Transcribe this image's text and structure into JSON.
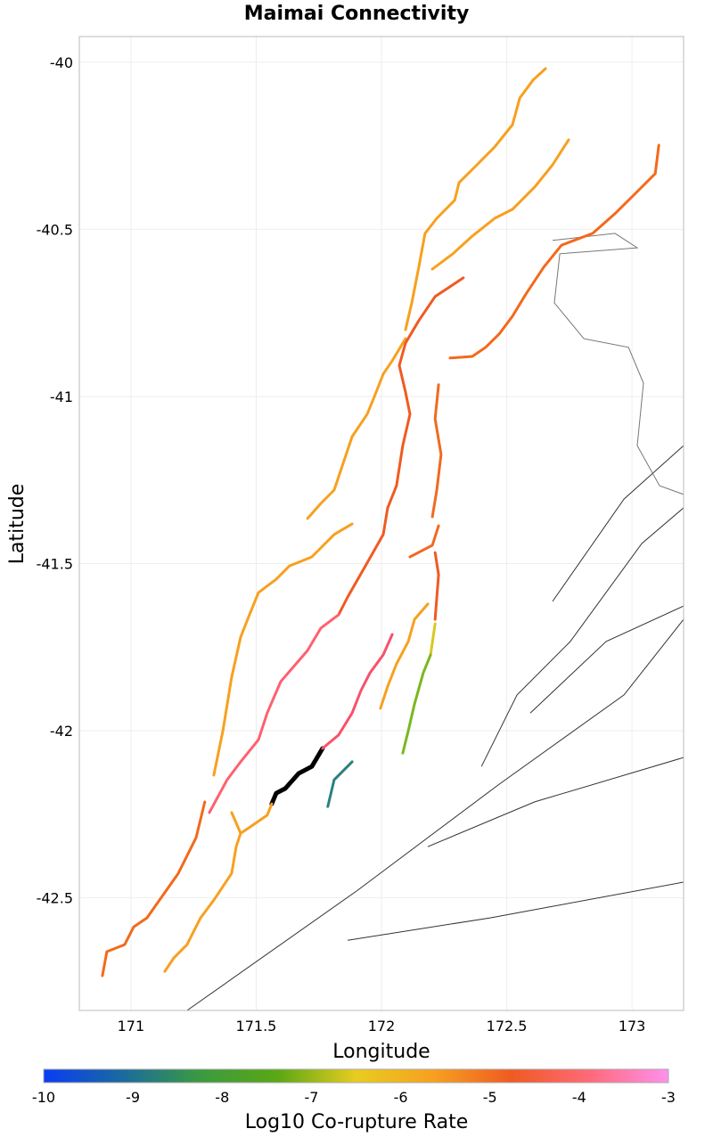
{
  "chart_data": {
    "type": "map",
    "title": "Maimai Connectivity",
    "xlabel": "Longitude",
    "ylabel": "Latitude",
    "xlim": [
      170.794,
      173.206
    ],
    "ylim": [
      -42.837,
      -39.923
    ],
    "xticks": [
      171,
      171.5,
      172,
      172.5,
      173
    ],
    "xtick_labels": [
      "171",
      "171.5",
      "172",
      "172.5",
      "173"
    ],
    "yticks": [
      -40,
      -40.5,
      -41,
      -41.5,
      -42,
      -42.5
    ],
    "ytick_labels": [
      "-40",
      "-40.5",
      "-41",
      "-41.5",
      "-42",
      "-42.5"
    ],
    "grid": true,
    "colorbar": {
      "label": "Log10 Co-rupture Rate",
      "range": [
        -10,
        -3
      ],
      "ticks": [
        "-10",
        "-9",
        "-8",
        "-7",
        "-6",
        "-5",
        "-4",
        "-3"
      ],
      "stops": [
        "#0a3cf5",
        "#1a6aa0",
        "#3a9a40",
        "#5aa814",
        "#e8cc20",
        "#f7a020",
        "#f05a22",
        "#ff6a7a",
        "#ff90ee"
      ]
    },
    "fault_traces": [
      {
        "name": "trace-1",
        "color": "#f7a020",
        "pts": [
          [
            172.655,
            -40.019
          ],
          [
            172.605,
            -40.053
          ],
          [
            172.552,
            -40.107
          ],
          [
            172.523,
            -40.187
          ],
          [
            172.452,
            -40.253
          ],
          [
            172.381,
            -40.307
          ],
          [
            172.31,
            -40.36
          ],
          [
            172.292,
            -40.413
          ],
          [
            172.221,
            -40.467
          ],
          [
            172.174,
            -40.512
          ],
          [
            172.149,
            -40.613
          ],
          [
            172.121,
            -40.72
          ],
          [
            172.096,
            -40.8
          ]
        ]
      },
      {
        "name": "trace-2",
        "color": "#f7a020",
        "pts": [
          [
            172.096,
            -40.827
          ],
          [
            172.043,
            -40.893
          ],
          [
            172.007,
            -40.933
          ],
          [
            171.972,
            -41.0
          ],
          [
            171.943,
            -41.053
          ],
          [
            171.883,
            -41.12
          ],
          [
            171.847,
            -41.2
          ],
          [
            171.811,
            -41.28
          ],
          [
            171.758,
            -41.32
          ],
          [
            171.705,
            -41.365
          ]
        ]
      },
      {
        "name": "trace-3",
        "color": "#f7a020",
        "pts": [
          [
            171.883,
            -41.381
          ],
          [
            171.811,
            -41.413
          ],
          [
            171.722,
            -41.48
          ],
          [
            171.633,
            -41.507
          ],
          [
            171.58,
            -41.547
          ],
          [
            171.509,
            -41.587
          ],
          [
            171.473,
            -41.653
          ],
          [
            171.438,
            -41.72
          ],
          [
            171.402,
            -41.84
          ],
          [
            171.367,
            -42.0
          ],
          [
            171.331,
            -42.133
          ]
        ]
      },
      {
        "name": "trace-4",
        "color": "#f26a1b",
        "pts": [
          [
            171.295,
            -42.213
          ],
          [
            171.26,
            -42.32
          ],
          [
            171.189,
            -42.427
          ],
          [
            171.064,
            -42.56
          ],
          [
            171.011,
            -42.587
          ],
          [
            170.975,
            -42.64
          ],
          [
            170.904,
            -42.661
          ],
          [
            170.886,
            -42.733
          ]
        ]
      },
      {
        "name": "trace-5",
        "color": "#f26a1b",
        "pts": [
          [
            173.107,
            -40.248
          ],
          [
            173.093,
            -40.333
          ],
          [
            173.021,
            -40.387
          ],
          [
            172.932,
            -40.453
          ],
          [
            172.843,
            -40.512
          ],
          [
            172.719,
            -40.547
          ],
          [
            172.648,
            -40.613
          ],
          [
            172.577,
            -40.693
          ],
          [
            172.523,
            -40.76
          ],
          [
            172.47,
            -40.813
          ],
          [
            172.416,
            -40.853
          ],
          [
            172.363,
            -40.88
          ],
          [
            172.274,
            -40.885
          ]
        ]
      },
      {
        "name": "trace-6",
        "color": "#f7a020",
        "pts": [
          [
            172.747,
            -40.232
          ],
          [
            172.683,
            -40.307
          ],
          [
            172.612,
            -40.373
          ],
          [
            172.523,
            -40.44
          ],
          [
            172.452,
            -40.467
          ],
          [
            172.363,
            -40.52
          ],
          [
            172.285,
            -40.573
          ],
          [
            172.203,
            -40.619
          ]
        ]
      },
      {
        "name": "trace-7",
        "color": "#f05a22",
        "pts": [
          [
            172.327,
            -40.645
          ],
          [
            172.214,
            -40.701
          ],
          [
            172.149,
            -40.773
          ],
          [
            172.096,
            -40.84
          ],
          [
            172.071,
            -40.907
          ],
          [
            172.096,
            -40.987
          ],
          [
            172.114,
            -41.053
          ],
          [
            172.085,
            -41.147
          ],
          [
            172.06,
            -41.267
          ],
          [
            172.025,
            -41.333
          ],
          [
            172.007,
            -41.413
          ],
          [
            171.936,
            -41.507
          ],
          [
            171.865,
            -41.6
          ],
          [
            171.829,
            -41.653
          ]
        ]
      },
      {
        "name": "trace-8",
        "color": "#ff6070",
        "pts": [
          [
            171.829,
            -41.653
          ],
          [
            171.758,
            -41.693
          ],
          [
            171.705,
            -41.76
          ],
          [
            171.598,
            -41.853
          ],
          [
            171.544,
            -41.947
          ],
          [
            171.509,
            -42.027
          ],
          [
            171.438,
            -42.093
          ],
          [
            171.384,
            -42.147
          ],
          [
            171.313,
            -42.245
          ]
        ]
      },
      {
        "name": "trace-9",
        "color": "#000000",
        "pts": [
          [
            171.765,
            -42.053
          ],
          [
            171.722,
            -42.107
          ],
          [
            171.669,
            -42.128
          ],
          [
            171.616,
            -42.173
          ],
          [
            171.58,
            -42.187
          ],
          [
            171.562,
            -42.219
          ]
        ]
      },
      {
        "name": "trace-10",
        "color": "#f8526a",
        "pts": [
          [
            172.043,
            -41.712
          ],
          [
            172.007,
            -41.773
          ],
          [
            171.954,
            -41.827
          ],
          [
            171.918,
            -41.88
          ],
          [
            171.883,
            -41.947
          ],
          [
            171.829,
            -42.013
          ],
          [
            171.765,
            -42.053
          ]
        ]
      },
      {
        "name": "trace-11",
        "color": "#2a8080",
        "pts": [
          [
            171.883,
            -42.093
          ],
          [
            171.811,
            -42.147
          ],
          [
            171.786,
            -42.227
          ]
        ]
      },
      {
        "name": "trace-12",
        "color": "#f7a020",
        "pts": [
          [
            172.185,
            -41.621
          ],
          [
            172.132,
            -41.667
          ],
          [
            172.107,
            -41.733
          ],
          [
            172.06,
            -41.8
          ],
          [
            172.025,
            -41.867
          ],
          [
            171.996,
            -41.933
          ]
        ]
      },
      {
        "name": "trace-13",
        "color": "#d8c820",
        "pts": [
          [
            172.214,
            -41.68
          ],
          [
            172.196,
            -41.773
          ]
        ]
      },
      {
        "name": "trace-14",
        "color": "#7ab820",
        "pts": [
          [
            172.196,
            -41.773
          ],
          [
            172.167,
            -41.827
          ],
          [
            172.132,
            -41.92
          ],
          [
            172.107,
            -42.0
          ],
          [
            172.085,
            -42.067
          ]
        ]
      },
      {
        "name": "trace-15",
        "color": "#f06a20",
        "pts": [
          [
            172.228,
            -40.965
          ],
          [
            172.214,
            -41.067
          ],
          [
            172.238,
            -41.173
          ],
          [
            172.221,
            -41.28
          ],
          [
            172.203,
            -41.36
          ]
        ]
      },
      {
        "name": "trace-16",
        "color": "#f06a20",
        "pts": [
          [
            172.228,
            -41.387
          ],
          [
            172.203,
            -41.445
          ],
          [
            172.114,
            -41.48
          ]
        ]
      },
      {
        "name": "trace-17",
        "color": "#f05a22",
        "pts": [
          [
            172.214,
            -41.467
          ],
          [
            172.228,
            -41.533
          ],
          [
            172.214,
            -41.667
          ]
        ]
      },
      {
        "name": "trace-18",
        "color": "#f7a020",
        "pts": [
          [
            171.402,
            -42.245
          ],
          [
            171.438,
            -42.307
          ],
          [
            171.42,
            -42.347
          ],
          [
            171.402,
            -42.427
          ],
          [
            171.331,
            -42.507
          ],
          [
            171.278,
            -42.56
          ],
          [
            171.224,
            -42.64
          ],
          [
            171.171,
            -42.68
          ],
          [
            171.135,
            -42.72
          ]
        ]
      },
      {
        "name": "trace-19",
        "color": "#f7a020",
        "pts": [
          [
            171.562,
            -42.219
          ],
          [
            171.544,
            -42.253
          ],
          [
            171.491,
            -42.28
          ],
          [
            171.438,
            -42.307
          ]
        ]
      }
    ],
    "other_faults": [
      [
        [
          171.224,
          -42.837
        ],
        [
          171.9,
          -42.48
        ],
        [
          172.47,
          -42.16
        ],
        [
          172.968,
          -41.893
        ],
        [
          173.206,
          -41.667
        ]
      ],
      [
        [
          172.399,
          -42.107
        ],
        [
          172.541,
          -41.893
        ],
        [
          172.754,
          -41.733
        ],
        [
          173.039,
          -41.44
        ],
        [
          173.206,
          -41.333
        ]
      ],
      [
        [
          172.594,
          -41.947
        ],
        [
          172.897,
          -41.733
        ],
        [
          173.206,
          -41.627
        ]
      ],
      [
        [
          172.185,
          -42.347
        ],
        [
          172.612,
          -42.213
        ],
        [
          173.206,
          -42.08
        ]
      ],
      [
        [
          171.865,
          -42.627
        ],
        [
          172.434,
          -42.56
        ],
        [
          173.206,
          -42.453
        ]
      ],
      [
        [
          172.683,
          -41.613
        ],
        [
          172.968,
          -41.307
        ],
        [
          173.206,
          -41.147
        ]
      ]
    ],
    "coastline": [
      [
        172.683,
        -40.533
      ],
      [
        172.932,
        -40.512
      ],
      [
        173.021,
        -40.555
      ],
      [
        172.712,
        -40.573
      ],
      [
        172.69,
        -40.72
      ],
      [
        172.808,
        -40.827
      ],
      [
        172.986,
        -40.853
      ],
      [
        173.046,
        -40.96
      ],
      [
        173.021,
        -41.147
      ],
      [
        173.11,
        -41.267
      ],
      [
        173.206,
        -41.293
      ]
    ]
  }
}
